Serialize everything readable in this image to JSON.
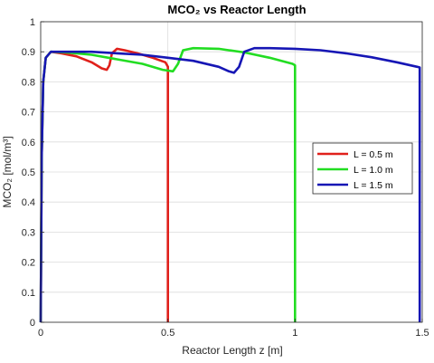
{
  "chart_data": {
    "type": "line",
    "title": "MCO₂ vs Reactor Length",
    "xlabel": "Reactor Length z [m]",
    "ylabel": "MCO₂ [mol/m³]",
    "xlim": [
      0,
      1.5
    ],
    "ylim": [
      0,
      1
    ],
    "xticks": [
      "0",
      "0.5",
      "1",
      "1.5"
    ],
    "yticks": [
      "0",
      "0.1",
      "0.2",
      "0.3",
      "0.4",
      "0.5",
      "0.6",
      "0.7",
      "0.8",
      "0.9",
      "1"
    ],
    "grid": true,
    "legend_position": "right",
    "series": [
      {
        "name": "L = 0.5 m",
        "color": "#e0201b",
        "x": [
          0,
          0.004,
          0.01,
          0.02,
          0.04,
          0.08,
          0.14,
          0.2,
          0.24,
          0.26,
          0.27,
          0.28,
          0.3,
          0.33,
          0.38,
          0.44,
          0.49,
          0.5,
          0.5
        ],
        "y": [
          0,
          0.55,
          0.8,
          0.88,
          0.9,
          0.895,
          0.885,
          0.865,
          0.845,
          0.84,
          0.855,
          0.895,
          0.91,
          0.905,
          0.895,
          0.88,
          0.865,
          0.85,
          0
        ]
      },
      {
        "name": "L = 1.0 m",
        "color": "#22dd22",
        "x": [
          0,
          0.004,
          0.01,
          0.02,
          0.04,
          0.1,
          0.2,
          0.3,
          0.4,
          0.48,
          0.52,
          0.54,
          0.56,
          0.6,
          0.7,
          0.8,
          0.9,
          0.99,
          1.0,
          1.0
        ],
        "y": [
          0,
          0.55,
          0.8,
          0.88,
          0.9,
          0.898,
          0.89,
          0.875,
          0.86,
          0.84,
          0.835,
          0.86,
          0.905,
          0.912,
          0.91,
          0.898,
          0.88,
          0.86,
          0.855,
          0
        ]
      },
      {
        "name": "L = 1.5 m",
        "color": "#1616b5",
        "x": [
          0,
          0.004,
          0.01,
          0.02,
          0.04,
          0.1,
          0.2,
          0.3,
          0.4,
          0.5,
          0.6,
          0.7,
          0.74,
          0.76,
          0.78,
          0.8,
          0.84,
          0.9,
          1.0,
          1.1,
          1.2,
          1.3,
          1.4,
          1.48,
          1.49,
          1.49
        ],
        "y": [
          0,
          0.55,
          0.8,
          0.88,
          0.9,
          0.9,
          0.9,
          0.895,
          0.89,
          0.88,
          0.87,
          0.85,
          0.835,
          0.83,
          0.85,
          0.9,
          0.912,
          0.912,
          0.91,
          0.905,
          0.895,
          0.882,
          0.865,
          0.85,
          0.848,
          0
        ]
      }
    ]
  }
}
